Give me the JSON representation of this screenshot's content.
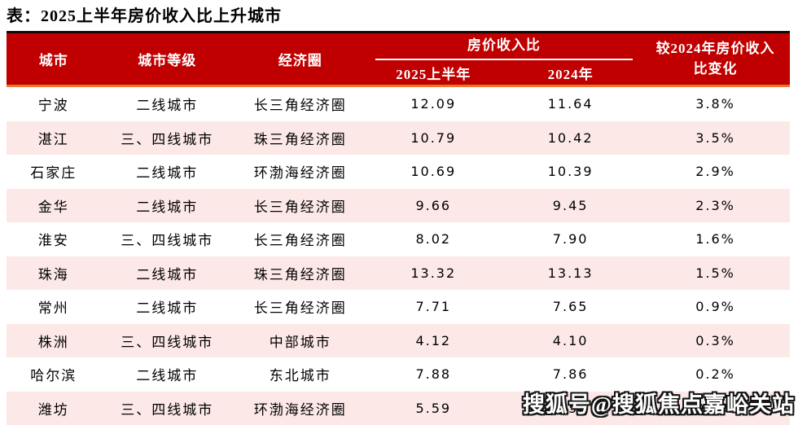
{
  "title": "表：2025上半年房价收入比上升城市",
  "colors": {
    "header_bg": "#C00000",
    "header_top_border": "#1A0604",
    "accent_orange": "#E9752F",
    "row_alt_pink": "#FCE9E7",
    "header_text": "#FFFFFF",
    "body_text": "#000000"
  },
  "table": {
    "headers": {
      "city": "城市",
      "tier": "城市等级",
      "circle": "经济圈",
      "group": "房价收入比",
      "col_2025": "2025上半年",
      "col_2024": "2024年",
      "change_lines": [
        "较2024年房价收入",
        "比变化"
      ]
    },
    "rows": [
      {
        "city": "宁波",
        "tier": "二线城市",
        "circle": "长三角经济圈",
        "v2025": "12.09",
        "v2024": "11.64",
        "change": "3.8%"
      },
      {
        "city": "湛江",
        "tier": "三、四线城市",
        "circle": "珠三角经济圈",
        "v2025": "10.79",
        "v2024": "10.42",
        "change": "3.5%"
      },
      {
        "city": "石家庄",
        "tier": "二线城市",
        "circle": "环渤海经济圈",
        "v2025": "10.69",
        "v2024": "10.39",
        "change": "2.9%"
      },
      {
        "city": "金华",
        "tier": "二线城市",
        "circle": "长三角经济圈",
        "v2025": "9.66",
        "v2024": "9.45",
        "change": "2.3%"
      },
      {
        "city": "淮安",
        "tier": "三、四线城市",
        "circle": "长三角经济圈",
        "v2025": "8.02",
        "v2024": "7.90",
        "change": "1.6%"
      },
      {
        "city": "珠海",
        "tier": "二线城市",
        "circle": "珠三角经济圈",
        "v2025": "13.32",
        "v2024": "13.13",
        "change": "1.5%"
      },
      {
        "city": "常州",
        "tier": "二线城市",
        "circle": "长三角经济圈",
        "v2025": "7.71",
        "v2024": "7.65",
        "change": "0.9%"
      },
      {
        "city": "株洲",
        "tier": "三、四线城市",
        "circle": "中部城市",
        "v2025": "4.12",
        "v2024": "4.10",
        "change": "0.3%"
      },
      {
        "city": "哈尔滨",
        "tier": "二线城市",
        "circle": "东北城市",
        "v2025": "7.88",
        "v2024": "7.86",
        "change": "0.2%"
      },
      {
        "city": "潍坊",
        "tier": "三、四线城市",
        "circle": "环渤海经济圈",
        "v2025": "5.59",
        "v2024": "5.58",
        "change": "0.2%"
      }
    ]
  },
  "watermark": "搜狐号@搜狐焦点嘉峪关站"
}
